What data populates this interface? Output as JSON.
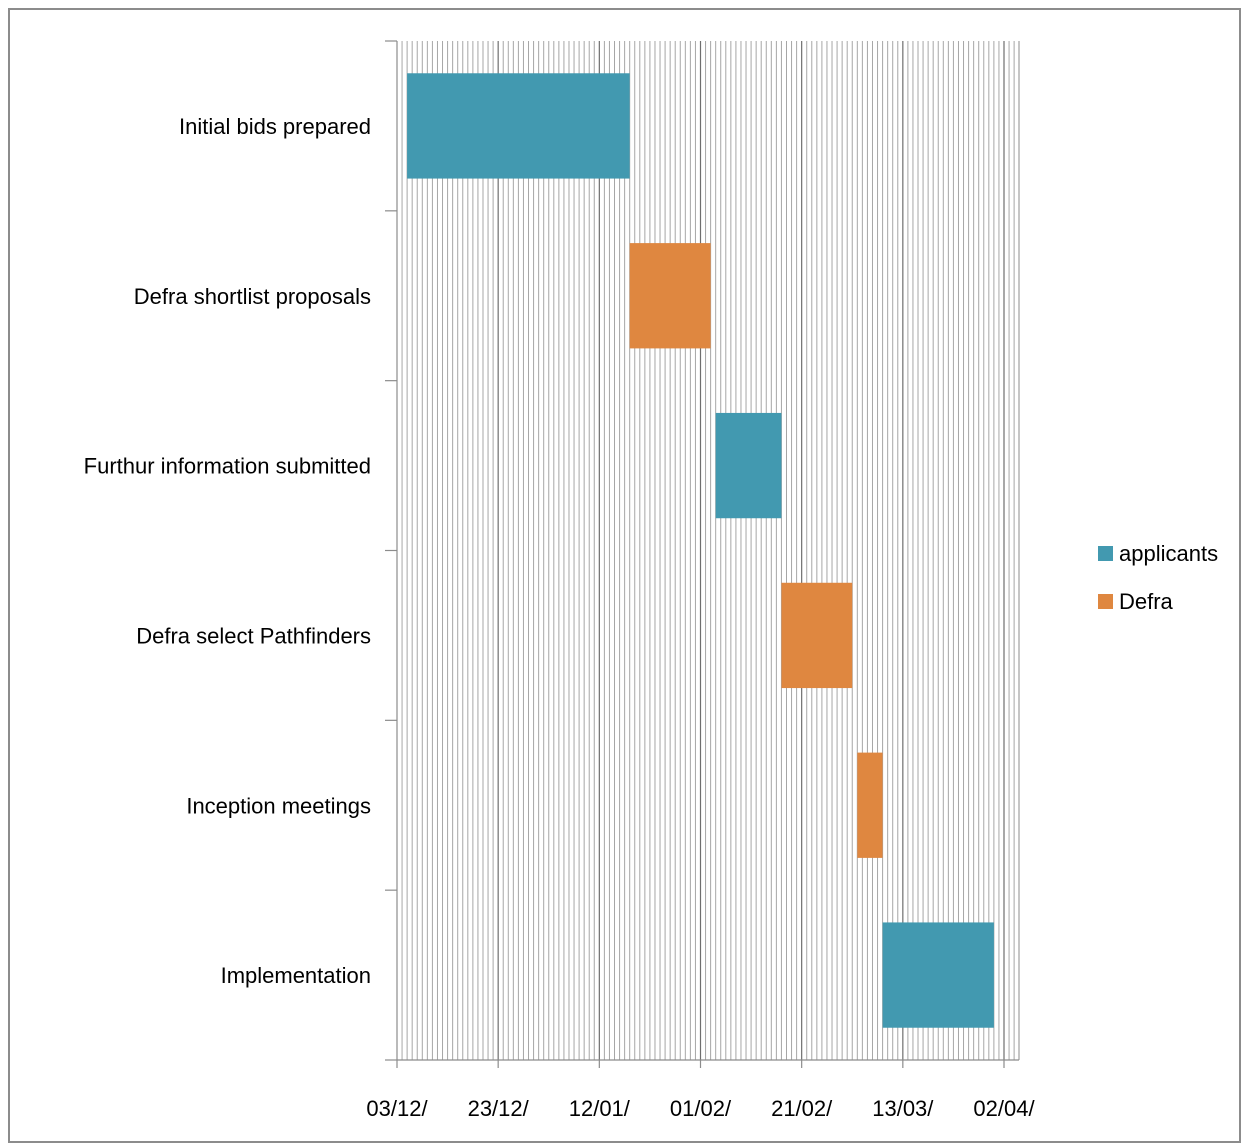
{
  "chart_data": {
    "type": "bar",
    "orientation": "horizontal",
    "stacked_gantt": true,
    "title": "",
    "xlabel": "",
    "ylabel": "",
    "x_axis": {
      "type": "date",
      "range": [
        "2014-12-03",
        "2015-04-10"
      ],
      "tick_labels": [
        "03/12/",
        "23/12/",
        "12/01/",
        "01/02/",
        "21/02/",
        "13/03/",
        "02/04/"
      ],
      "tick_dates": [
        "2014-12-03",
        "2014-12-23",
        "2015-01-12",
        "2015-02-01",
        "2015-02-21",
        "2015-03-13",
        "2015-04-02"
      ],
      "minor_gridlines": "daily",
      "major_gridlines": "every 20 days"
    },
    "categories": [
      "Initial bids prepared",
      "Defra shortlist proposals",
      "Furthur information submitted",
      "Defra select Pathfinders",
      "Inception meetings",
      "Implementation"
    ],
    "tasks": [
      {
        "category": "Initial bids prepared",
        "series": "applicants",
        "start": "2014-12-05",
        "end": "2015-01-18"
      },
      {
        "category": "Defra shortlist proposals",
        "series": "Defra",
        "start": "2015-01-18",
        "end": "2015-02-03"
      },
      {
        "category": "Furthur information submitted",
        "series": "applicants",
        "start": "2015-02-04",
        "end": "2015-02-17"
      },
      {
        "category": "Defra select Pathfinders",
        "series": "Defra",
        "start": "2015-02-17",
        "end": "2015-03-03"
      },
      {
        "category": "Inception meetings",
        "series": "Defra",
        "start": "2015-03-04",
        "end": "2015-03-09"
      },
      {
        "category": "Implementation",
        "series": "applicants",
        "start": "2015-03-09",
        "end": "2015-03-31"
      }
    ],
    "series": [
      {
        "name": "applicants",
        "color": "#4299b0"
      },
      {
        "name": "Defra",
        "color": "#df8740"
      }
    ],
    "legend": {
      "placement": "right"
    },
    "grid": true
  }
}
